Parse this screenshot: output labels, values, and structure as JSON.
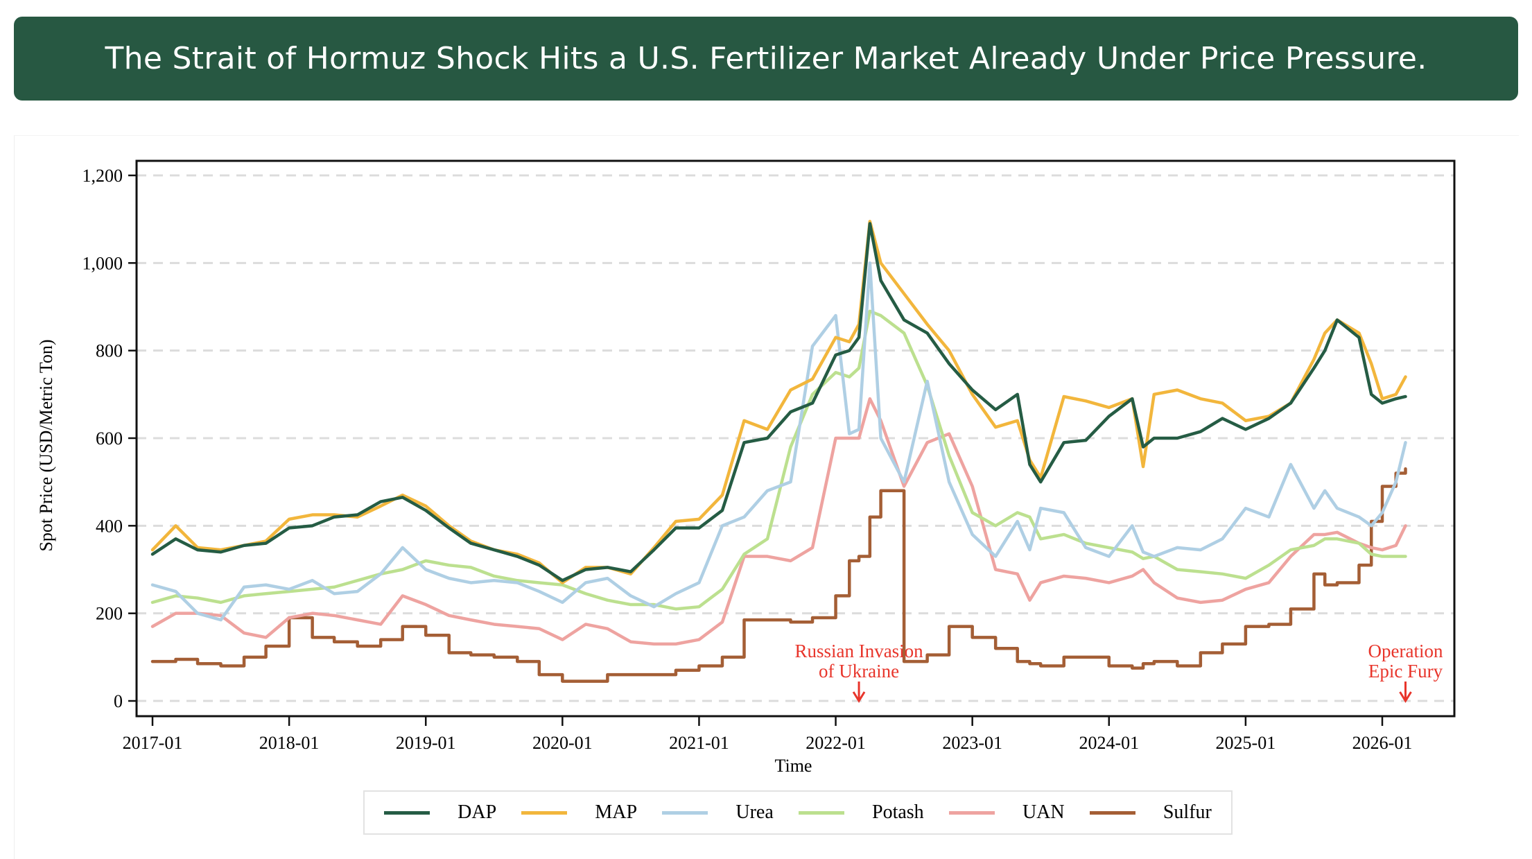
{
  "header": {
    "title": "The Strait of Hormuz Shock Hits a U.S. Fertilizer Market Already Under Price Pressure."
  },
  "chart_data": {
    "type": "line",
    "title": "The Strait of Hormuz Shock Hits a U.S. Fertilizer Market Already Under Price Pressure.",
    "xlabel": "Time",
    "ylabel": "Spot Price (USD/Metric Ton)",
    "ylim": [
      -30,
      1235
    ],
    "xlim": [
      2016.9,
      2026.6
    ],
    "yticks": [
      0,
      200,
      400,
      600,
      800,
      1000,
      1200
    ],
    "ytick_labels": [
      "0",
      "200",
      "400",
      "600",
      "800",
      "1,000",
      "1,200"
    ],
    "xticks": [
      2017,
      2018,
      2019,
      2020,
      2021,
      2022,
      2023,
      2024,
      2025,
      2026
    ],
    "xtick_labels": [
      "2017-01",
      "2018-01",
      "2019-01",
      "2020-01",
      "2021-01",
      "2022-01",
      "2023-01",
      "2024-01",
      "2025-01",
      "2026-01"
    ],
    "grid": "horizontal-dashed",
    "legend_position": "bottom",
    "annotations": [
      {
        "text": [
          "Russian Invasion",
          "of Ukraine"
        ],
        "x": 2022.17,
        "color": "#e8352b"
      },
      {
        "text": [
          "Operation",
          "Epic Fury"
        ],
        "x": 2026.17,
        "color": "#e8352b"
      }
    ],
    "x": [
      2017.0,
      2017.17,
      2017.33,
      2017.5,
      2017.67,
      2017.83,
      2018.0,
      2018.17,
      2018.33,
      2018.5,
      2018.67,
      2018.83,
      2019.0,
      2019.17,
      2019.33,
      2019.5,
      2019.67,
      2019.83,
      2020.0,
      2020.17,
      2020.33,
      2020.5,
      2020.67,
      2020.83,
      2021.0,
      2021.17,
      2021.33,
      2021.5,
      2021.67,
      2021.83,
      2022.0,
      2022.1,
      2022.17,
      2022.25,
      2022.33,
      2022.5,
      2022.67,
      2022.83,
      2023.0,
      2023.17,
      2023.33,
      2023.42,
      2023.5,
      2023.67,
      2023.83,
      2024.0,
      2024.17,
      2024.25,
      2024.33,
      2024.5,
      2024.67,
      2024.83,
      2025.0,
      2025.17,
      2025.33,
      2025.5,
      2025.58,
      2025.67,
      2025.83,
      2025.92,
      2026.0,
      2026.1,
      2026.17
    ],
    "series": [
      {
        "name": "DAP",
        "color": "#255c44",
        "values": [
          335,
          370,
          345,
          340,
          355,
          360,
          395,
          400,
          420,
          425,
          455,
          465,
          435,
          395,
          360,
          345,
          330,
          310,
          275,
          300,
          305,
          295,
          345,
          395,
          395,
          435,
          590,
          600,
          660,
          680,
          790,
          800,
          830,
          1090,
          960,
          870,
          840,
          770,
          710,
          665,
          700,
          540,
          500,
          590,
          595,
          650,
          690,
          580,
          600,
          600,
          615,
          645,
          620,
          645,
          680,
          760,
          800,
          870,
          830,
          700,
          680,
          690,
          695
        ]
      },
      {
        "name": "MAP",
        "color": "#f2b63c",
        "values": [
          345,
          400,
          350,
          345,
          355,
          365,
          415,
          425,
          425,
          420,
          445,
          470,
          445,
          400,
          365,
          345,
          335,
          315,
          270,
          305,
          305,
          290,
          350,
          410,
          415,
          470,
          640,
          620,
          710,
          735,
          830,
          820,
          860,
          1095,
          1000,
          930,
          860,
          800,
          700,
          625,
          640,
          550,
          510,
          695,
          685,
          670,
          690,
          535,
          700,
          710,
          690,
          680,
          640,
          650,
          680,
          780,
          840,
          870,
          840,
          770,
          690,
          700,
          740
        ]
      },
      {
        "name": "Urea",
        "color": "#afcfe4",
        "values": [
          265,
          250,
          200,
          185,
          260,
          265,
          255,
          275,
          245,
          250,
          290,
          350,
          300,
          280,
          270,
          275,
          270,
          250,
          225,
          270,
          280,
          240,
          215,
          245,
          270,
          400,
          420,
          480,
          500,
          810,
          880,
          610,
          620,
          1000,
          600,
          500,
          730,
          500,
          380,
          330,
          410,
          345,
          440,
          430,
          350,
          330,
          400,
          340,
          330,
          350,
          345,
          370,
          440,
          420,
          540,
          440,
          480,
          440,
          420,
          400,
          430,
          500,
          590
        ]
      },
      {
        "name": "Potash",
        "color": "#bce08f",
        "values": [
          225,
          240,
          235,
          225,
          240,
          245,
          250,
          255,
          260,
          275,
          290,
          300,
          320,
          310,
          305,
          285,
          275,
          270,
          265,
          245,
          230,
          220,
          220,
          210,
          215,
          255,
          335,
          370,
          580,
          700,
          750,
          740,
          760,
          890,
          880,
          840,
          720,
          560,
          430,
          400,
          430,
          420,
          370,
          380,
          360,
          350,
          340,
          325,
          330,
          300,
          295,
          290,
          280,
          310,
          345,
          355,
          370,
          370,
          360,
          335,
          330,
          330,
          330
        ]
      },
      {
        "name": "UAN",
        "color": "#eea3a0",
        "values": [
          170,
          200,
          200,
          195,
          155,
          145,
          190,
          200,
          195,
          185,
          175,
          240,
          220,
          195,
          185,
          175,
          170,
          165,
          140,
          175,
          165,
          135,
          130,
          130,
          140,
          180,
          330,
          330,
          320,
          350,
          600,
          600,
          600,
          690,
          640,
          490,
          590,
          610,
          490,
          300,
          290,
          230,
          270,
          285,
          280,
          270,
          285,
          300,
          270,
          235,
          225,
          230,
          255,
          270,
          330,
          380,
          380,
          385,
          360,
          350,
          345,
          355,
          400
        ]
      },
      {
        "name": "Sulfur",
        "color": "#a45e35",
        "values": [
          90,
          95,
          85,
          80,
          100,
          125,
          190,
          145,
          135,
          125,
          140,
          170,
          150,
          110,
          105,
          100,
          90,
          60,
          45,
          45,
          60,
          60,
          60,
          70,
          80,
          100,
          185,
          185,
          180,
          190,
          240,
          320,
          330,
          420,
          480,
          90,
          105,
          170,
          145,
          120,
          90,
          85,
          80,
          100,
          100,
          80,
          75,
          85,
          90,
          80,
          110,
          130,
          170,
          175,
          210,
          290,
          265,
          270,
          310,
          410,
          490,
          520,
          530
        ]
      }
    ]
  },
  "legend": [
    {
      "label": "DAP",
      "color": "#255c44"
    },
    {
      "label": "MAP",
      "color": "#f2b63c"
    },
    {
      "label": "Urea",
      "color": "#afcfe4"
    },
    {
      "label": "Potash",
      "color": "#bce08f"
    },
    {
      "label": "UAN",
      "color": "#eea3a0"
    },
    {
      "label": "Sulfur",
      "color": "#a45e35"
    }
  ]
}
